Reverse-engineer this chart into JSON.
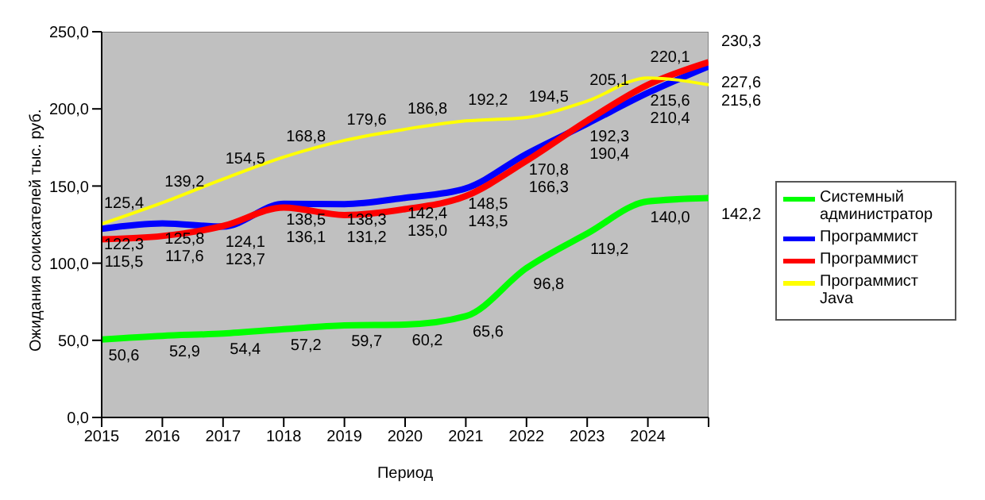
{
  "chart_data": {
    "type": "line",
    "xlabel": "Период",
    "ylabel": "Ожидания  соискателей  тыс.  руб.",
    "categories": [
      "2015",
      "2016",
      "2017",
      "1018",
      "2019",
      "2020",
      "2021",
      "2022",
      "2023",
      "2024",
      null
    ],
    "series": [
      {
        "name": "Системный администратор",
        "color": "#00ff00",
        "values": [
          50.6,
          52.9,
          54.4,
          57.2,
          59.7,
          60.2,
          65.6,
          96.8,
          119.2,
          140.0,
          142.2
        ],
        "value_labels": [
          "50,6",
          "52,9",
          "54,4",
          "57,2",
          "59,7",
          "60,2",
          "65,6",
          "96,8",
          "119,2",
          "140,0",
          "142,2"
        ]
      },
      {
        "name": "Программист",
        "color": "#0000ff",
        "values": [
          122.3,
          125.8,
          123.7,
          138.5,
          138.3,
          142.4,
          148.5,
          170.8,
          190.4,
          210.4,
          227.6
        ],
        "value_labels": [
          "122,3",
          "125,8",
          "123,7",
          "138,5",
          "138,3",
          "142,4",
          "148,5",
          "170,8",
          "190,4",
          "210,4",
          "227,6"
        ]
      },
      {
        "name": "Программист",
        "color": "#ff0000",
        "values": [
          115.5,
          117.6,
          124.1,
          136.1,
          131.2,
          135.0,
          143.5,
          166.3,
          192.3,
          215.6,
          230.3
        ],
        "value_labels": [
          "115,5",
          "117,6",
          "124,1",
          "136,1",
          "131,2",
          "135,0",
          "143,5",
          "166,3",
          "192,3",
          "215,6",
          "230,3"
        ]
      },
      {
        "name": "Программист Java",
        "color": "#ffff00",
        "values": [
          125.4,
          139.2,
          154.5,
          168.8,
          179.6,
          186.8,
          192.2,
          194.5,
          205.1,
          220.1,
          215.6
        ],
        "value_labels": [
          "125,4",
          "139,2",
          "154,5",
          "168,8",
          "179,6",
          "186,8",
          "192,2",
          "194,5",
          "205,1",
          "220,1",
          "215,6"
        ]
      }
    ],
    "ylim": [
      0,
      250
    ],
    "yticks": [
      {
        "value": 0,
        "label": "0,0"
      },
      {
        "value": 50,
        "label": "50,0"
      },
      {
        "value": 100,
        "label": "100,0"
      },
      {
        "value": 150,
        "label": "150,0"
      },
      {
        "value": 200,
        "label": "200,0"
      },
      {
        "value": 250,
        "label": "250,0"
      }
    ],
    "grid": false,
    "legend": "right",
    "marker": "none",
    "line_style": "solid"
  }
}
